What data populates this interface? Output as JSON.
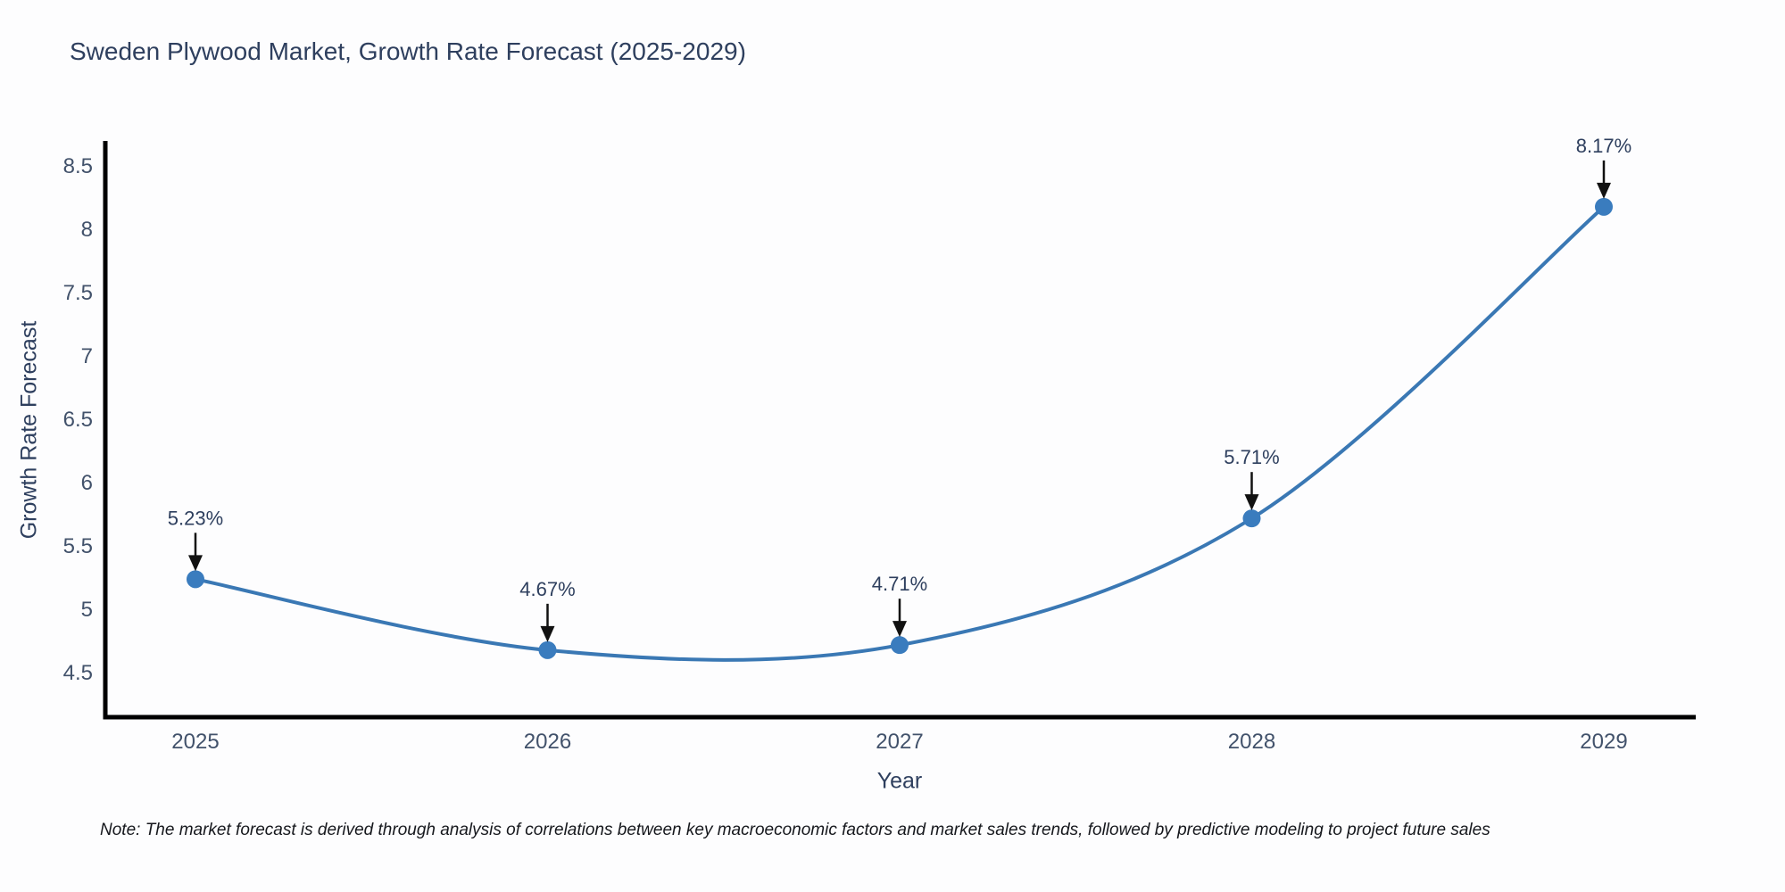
{
  "chart_data": {
    "type": "line",
    "title": "Sweden Plywood Market, Growth Rate Forecast (2025-2029)",
    "xlabel": "Year",
    "ylabel": "Growth Rate Forecast",
    "categories": [
      "2025",
      "2026",
      "2027",
      "2028",
      "2029"
    ],
    "values": [
      5.23,
      4.67,
      4.71,
      5.71,
      8.17
    ],
    "labels": [
      "5.23%",
      "4.67%",
      "4.71%",
      "5.71%",
      "8.17%"
    ],
    "yticks": [
      "4.5",
      "5",
      "5.5",
      "6",
      "6.5",
      "7",
      "7.5",
      "8",
      "8.5"
    ],
    "ylim": [
      4.5,
      8.5
    ],
    "line_shape": "spline",
    "grid": false,
    "legend": "none",
    "line_color": "#3a78b4",
    "marker_color": "#3a7cbe",
    "arrow_color": "#111111",
    "axis_color": "#000000",
    "text_color": "#2e3f5e",
    "note": "Note: The market forecast is derived through analysis of correlations between key macroeconomic factors and market sales trends, followed by predictive modeling to project future sales"
  }
}
